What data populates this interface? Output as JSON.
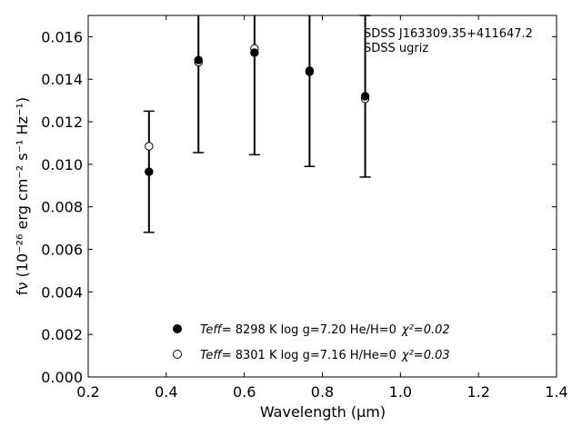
{
  "chart_data": {
    "type": "scatter",
    "annotation": [
      "SDSS J163309.35+411647.2",
      "SDSS ugriz"
    ],
    "xlabel": "Wavelength (μm)",
    "ylabel": "fν (10⁻²⁶ erg cm⁻² s⁻¹ Hz⁻¹)",
    "xlim": [
      0.2,
      1.4
    ],
    "ylim": [
      0.0,
      0.017
    ],
    "x_ticks": [
      0.2,
      0.4,
      0.6,
      0.8,
      1.0,
      1.2,
      1.4
    ],
    "x_tick_labels": [
      "0.2",
      "0.4",
      "0.6",
      "0.8",
      "1.0",
      "1.2",
      "1.4"
    ],
    "y_ticks": [
      0.0,
      0.002,
      0.004,
      0.006,
      0.008,
      0.01,
      0.012,
      0.014,
      0.016
    ],
    "y_tick_labels": [
      "0.000",
      "0.002",
      "0.004",
      "0.006",
      "0.008",
      "0.010",
      "0.012",
      "0.014",
      "0.016"
    ],
    "errorbars": {
      "x": [
        0.3557,
        0.4825,
        0.6261,
        0.7672,
        0.9097
      ],
      "y": [
        0.00965,
        0.01485,
        0.01525,
        0.0144,
        0.0132
      ],
      "yerr": [
        0.00285,
        0.0043,
        0.0048,
        0.0045,
        0.0038
      ]
    },
    "series": [
      {
        "marker": "filled",
        "x": [
          0.3557,
          0.4825,
          0.6261,
          0.7672,
          0.9097
        ],
        "y": [
          0.00965,
          0.0149,
          0.01525,
          0.0144,
          0.0132
        ]
      },
      {
        "marker": "open",
        "x": [
          0.3557,
          0.4825,
          0.6261,
          0.7672,
          0.9097
        ],
        "y": [
          0.01085,
          0.0148,
          0.01545,
          0.01435,
          0.01308
        ]
      }
    ],
    "legend": {
      "position": "lower-center",
      "entries": [
        {
          "marker": "filled",
          "teff_label": "Teff",
          "rest": "=  8298 K  log g=7.20  He/H=0",
          "chi_text": "χ²=0.02"
        },
        {
          "marker": "open",
          "teff_label": "Teff",
          "rest": "=  8301 K  log g=7.16  H/He=0",
          "chi_text": "χ²=0.03"
        }
      ]
    },
    "grid": false
  }
}
